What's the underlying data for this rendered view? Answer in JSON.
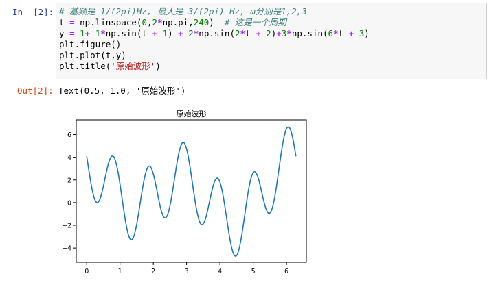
{
  "input_prompt": "In  [2]:",
  "output_prompt": "Out[2]:",
  "code_lines": [
    [
      {
        "t": "# 基频是 1/(2pi)Hz, 最大是 3/(2pi) Hz, ω分别是1,2,3",
        "c": "cm"
      }
    ],
    [
      {
        "t": "t ",
        "c": ""
      },
      {
        "t": "=",
        "c": "op"
      },
      {
        "t": " np.linspace(",
        "c": ""
      },
      {
        "t": "0",
        "c": "nu"
      },
      {
        "t": ",",
        "c": ""
      },
      {
        "t": "2",
        "c": "nu"
      },
      {
        "t": "*",
        "c": "op"
      },
      {
        "t": "np.pi,",
        "c": ""
      },
      {
        "t": "240",
        "c": "nu"
      },
      {
        "t": ")  ",
        "c": ""
      },
      {
        "t": "# 这是一个周期",
        "c": "cm"
      }
    ],
    [
      {
        "t": "y ",
        "c": ""
      },
      {
        "t": "=",
        "c": "op"
      },
      {
        "t": " ",
        "c": ""
      },
      {
        "t": "1",
        "c": "nu"
      },
      {
        "t": "+",
        "c": "op"
      },
      {
        "t": " ",
        "c": ""
      },
      {
        "t": "1",
        "c": "nu"
      },
      {
        "t": "*",
        "c": "op"
      },
      {
        "t": "np.sin(t ",
        "c": ""
      },
      {
        "t": "+",
        "c": "op"
      },
      {
        "t": " ",
        "c": ""
      },
      {
        "t": "1",
        "c": "nu"
      },
      {
        "t": ") ",
        "c": ""
      },
      {
        "t": "+",
        "c": "op"
      },
      {
        "t": " ",
        "c": ""
      },
      {
        "t": "2",
        "c": "nu"
      },
      {
        "t": "*",
        "c": "op"
      },
      {
        "t": "np.sin(",
        "c": ""
      },
      {
        "t": "2",
        "c": "nu"
      },
      {
        "t": "*",
        "c": "op"
      },
      {
        "t": "t ",
        "c": ""
      },
      {
        "t": "+",
        "c": "op"
      },
      {
        "t": " ",
        "c": ""
      },
      {
        "t": "2",
        "c": "nu"
      },
      {
        "t": ")",
        "c": ""
      },
      {
        "t": "+",
        "c": "op"
      },
      {
        "t": "3",
        "c": "nu"
      },
      {
        "t": "*",
        "c": "op"
      },
      {
        "t": "np.sin(",
        "c": ""
      },
      {
        "t": "6",
        "c": "nu"
      },
      {
        "t": "*",
        "c": "op"
      },
      {
        "t": "t ",
        "c": ""
      },
      {
        "t": "+",
        "c": "op"
      },
      {
        "t": " ",
        "c": ""
      },
      {
        "t": "3",
        "c": "nu"
      },
      {
        "t": ")",
        "c": ""
      }
    ],
    [
      {
        "t": "plt.figure()",
        "c": ""
      }
    ],
    [
      {
        "t": "plt.plot(t,y)",
        "c": ""
      }
    ],
    [
      {
        "t": "plt.title(",
        "c": ""
      },
      {
        "t": "'原始波形'",
        "c": "st"
      },
      {
        "t": ")",
        "c": ""
      }
    ]
  ],
  "output_text": "Text(0.5, 1.0, '原始波形')",
  "chart_data": {
    "type": "line",
    "title": "原始波形",
    "xlabel": "",
    "ylabel": "",
    "xlim": [
      -0.314,
      6.597
    ],
    "ylim": [
      -5.26,
      7.3
    ],
    "xticks": [
      0,
      1,
      2,
      3,
      4,
      5,
      6
    ],
    "yticks": [
      -4,
      -2,
      0,
      2,
      4,
      6
    ],
    "x_start": 0,
    "x_end": 6.2832,
    "num_points": 240,
    "series": [
      {
        "formula": "1 + sin(t+1) + 2*sin(2t+2) + 3*sin(6t+3)",
        "color": "#1f77b4",
        "x": [
          0,
          0.2,
          0.35,
          0.5,
          0.75,
          1.0,
          1.3,
          1.5,
          1.75,
          1.9,
          2.1,
          2.35,
          2.5,
          2.7,
          2.9,
          3.1,
          3.3,
          3.5,
          3.75,
          3.95,
          4.15,
          4.35,
          4.5,
          4.7,
          4.95,
          5.15,
          5.35,
          5.55,
          5.75,
          5.95,
          6.1,
          6.2832
        ],
        "y": [
          4.1,
          1.5,
          0.0,
          1.4,
          4.1,
          1.0,
          -3.2,
          -1.5,
          2.8,
          3.1,
          0.2,
          -1.3,
          0.0,
          4.0,
          5.3,
          2.5,
          -1.7,
          -1.2,
          1.9,
          2.0,
          -2.5,
          -4.7,
          -3.3,
          1.8,
          2.7,
          0.0,
          -0.8,
          2.5,
          5.3,
          6.7,
          5.9,
          4.1
        ]
      }
    ]
  }
}
